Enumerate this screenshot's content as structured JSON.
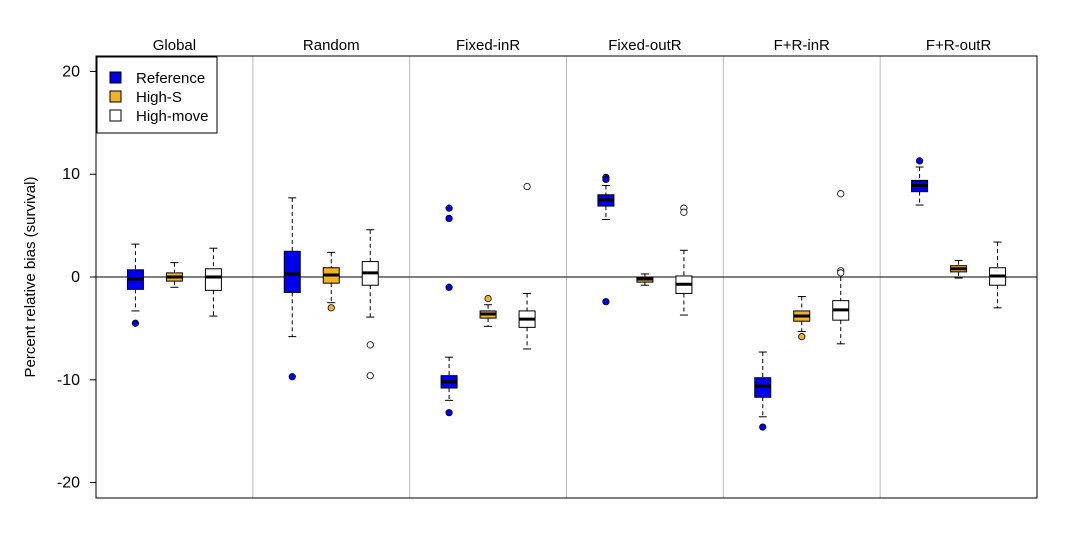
{
  "chart_data": {
    "type": "boxplot",
    "ylabel": "Percent relative bias (survival)",
    "ylim": [
      -21.5,
      21.5
    ],
    "yticks": [
      -20,
      -10,
      0,
      10,
      20
    ],
    "reference_line": 0,
    "legend_position": "top-left",
    "series": [
      {
        "name": "Reference",
        "color": "#0000ee"
      },
      {
        "name": "High-S",
        "color": "#f3b12c"
      },
      {
        "name": "High-move",
        "color": "#ffffff"
      }
    ],
    "panels": [
      {
        "label": "Global",
        "boxes": [
          {
            "series": 0,
            "whisker_low": -3.3,
            "q1": -1.2,
            "median": -0.2,
            "q3": 0.7,
            "whisker_high": 3.2,
            "outliers": [
              -4.5
            ]
          },
          {
            "series": 1,
            "whisker_low": -1.0,
            "q1": -0.4,
            "median": 0.0,
            "q3": 0.4,
            "whisker_high": 1.4,
            "outliers": []
          },
          {
            "series": 2,
            "whisker_low": -3.8,
            "q1": -1.3,
            "median": 0.0,
            "q3": 0.8,
            "whisker_high": 2.8,
            "outliers": []
          }
        ]
      },
      {
        "label": "Random",
        "boxes": [
          {
            "series": 0,
            "whisker_low": -5.8,
            "q1": -1.5,
            "median": 0.3,
            "q3": 2.5,
            "whisker_high": 7.7,
            "outliers": [
              -9.7
            ]
          },
          {
            "series": 1,
            "whisker_low": -2.5,
            "q1": -0.6,
            "median": 0.2,
            "q3": 0.9,
            "whisker_high": 2.4,
            "outliers": [
              -3.0
            ]
          },
          {
            "series": 2,
            "whisker_low": -3.9,
            "q1": -0.8,
            "median": 0.4,
            "q3": 1.5,
            "whisker_high": 4.6,
            "outliers": [
              -6.6,
              -9.6
            ]
          }
        ]
      },
      {
        "label": "Fixed-inR",
        "boxes": [
          {
            "series": 0,
            "whisker_low": -12.0,
            "q1": -10.8,
            "median": -10.2,
            "q3": -9.6,
            "whisker_high": -7.8,
            "outliers": [
              6.7,
              5.7,
              -1.0,
              -13.2
            ]
          },
          {
            "series": 1,
            "whisker_low": -4.8,
            "q1": -4.0,
            "median": -3.6,
            "q3": -3.3,
            "whisker_high": -2.7,
            "outliers": [
              -2.1
            ]
          },
          {
            "series": 2,
            "whisker_low": -7.0,
            "q1": -4.9,
            "median": -4.1,
            "q3": -3.3,
            "whisker_high": -1.6,
            "outliers": [
              8.8
            ]
          }
        ]
      },
      {
        "label": "Fixed-outR",
        "boxes": [
          {
            "series": 0,
            "whisker_low": 5.6,
            "q1": 6.9,
            "median": 7.5,
            "q3": 8.0,
            "whisker_high": 8.9,
            "outliers": [
              9.7,
              9.5,
              -2.4
            ]
          },
          {
            "series": 1,
            "whisker_low": -0.8,
            "q1": -0.5,
            "median": -0.2,
            "q3": 0.0,
            "whisker_high": 0.3,
            "outliers": []
          },
          {
            "series": 2,
            "whisker_low": -3.7,
            "q1": -1.6,
            "median": -0.7,
            "q3": 0.1,
            "whisker_high": 2.6,
            "outliers": [
              6.7,
              6.3
            ]
          }
        ]
      },
      {
        "label": "F+R-inR",
        "boxes": [
          {
            "series": 0,
            "whisker_low": -13.6,
            "q1": -11.7,
            "median": -10.6,
            "q3": -9.8,
            "whisker_high": -7.3,
            "outliers": [
              -14.6
            ]
          },
          {
            "series": 1,
            "whisker_low": -5.3,
            "q1": -4.3,
            "median": -3.8,
            "q3": -3.3,
            "whisker_high": -1.9,
            "outliers": [
              -5.8
            ]
          },
          {
            "series": 2,
            "whisker_low": -6.5,
            "q1": -4.2,
            "median": -3.2,
            "q3": -2.3,
            "whisker_high": 0.0,
            "outliers": [
              8.1,
              0.6,
              0.4
            ]
          }
        ]
      },
      {
        "label": "F+R-outR",
        "boxes": [
          {
            "series": 0,
            "whisker_low": 7.0,
            "q1": 8.3,
            "median": 8.9,
            "q3": 9.4,
            "whisker_high": 10.7,
            "outliers": [
              11.3
            ]
          },
          {
            "series": 1,
            "whisker_low": -0.1,
            "q1": 0.5,
            "median": 0.8,
            "q3": 1.1,
            "whisker_high": 1.6,
            "outliers": []
          },
          {
            "series": 2,
            "whisker_low": -3.0,
            "q1": -0.8,
            "median": 0.1,
            "q3": 0.9,
            "whisker_high": 3.4,
            "outliers": []
          }
        ]
      }
    ]
  }
}
